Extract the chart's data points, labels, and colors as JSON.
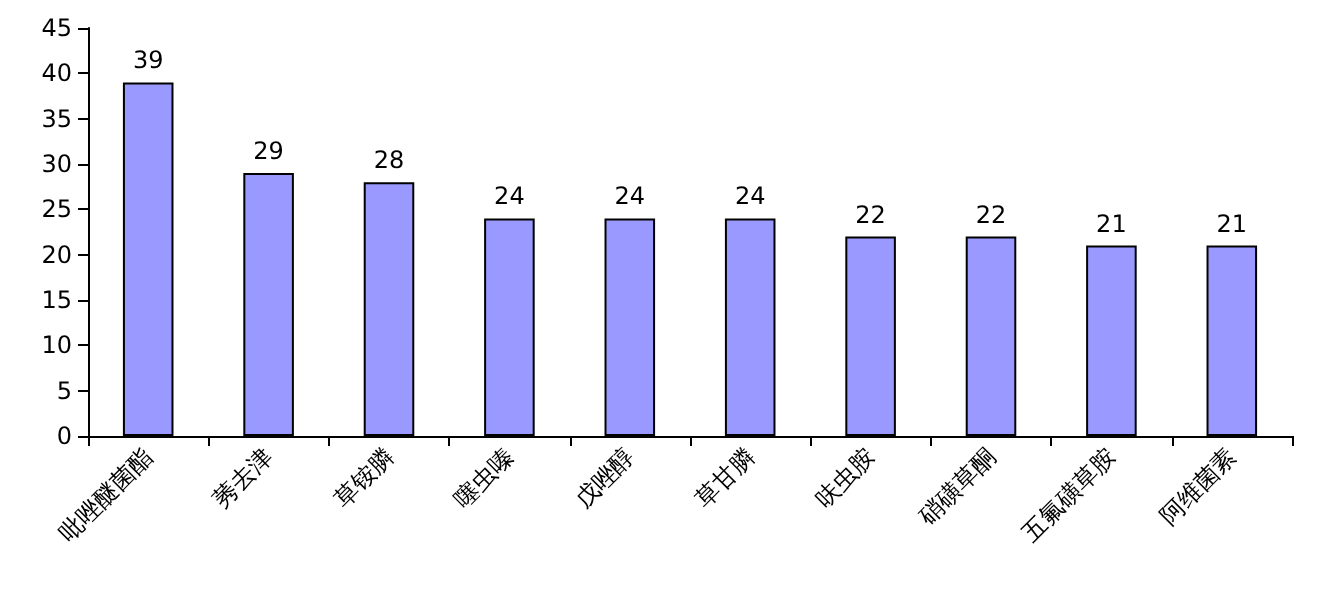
{
  "chart_data": {
    "type": "bar",
    "categories": [
      "吡唑醚菌酯",
      "莠去津",
      "草铵膦",
      "噻虫嗪",
      "戊唑醇",
      "草甘膦",
      "呋虫胺",
      "硝磺草酮",
      "五氟磺草胺",
      "阿维菌素"
    ],
    "values": [
      39,
      29,
      28,
      24,
      24,
      24,
      22,
      22,
      21,
      21
    ],
    "color": "#9999ff",
    "ylim": [
      0,
      45
    ],
    "yticks": [
      0,
      5,
      10,
      15,
      20,
      25,
      30,
      35,
      40,
      45
    ],
    "data_labels": true
  }
}
